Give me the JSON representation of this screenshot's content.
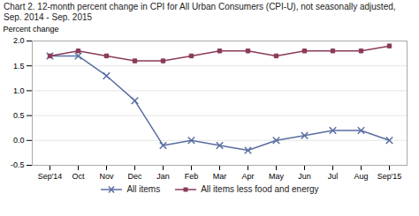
{
  "chart_data": {
    "type": "line",
    "title": "Chart 2. 12-month percent change in CPI for All Urban Consumers (CPI-U), not seasonally adjusted, Sep. 2014 - Sep. 2015",
    "y_label": "Percent change",
    "categories": [
      "Sep'14",
      "Oct",
      "Nov",
      "Dec",
      "Jan",
      "Feb",
      "Mar",
      "Apr",
      "May",
      "Jun",
      "Jul",
      "Aug",
      "Sep'15"
    ],
    "series": [
      {
        "name": "All items",
        "color": "#5a6ea1",
        "marker": "x",
        "values": [
          1.7,
          1.7,
          1.3,
          0.8,
          -0.1,
          0.0,
          -0.1,
          -0.2,
          0.0,
          0.1,
          0.2,
          0.2,
          0.0
        ]
      },
      {
        "name": "All items less food and energy",
        "color": "#8b3a5a",
        "marker": "square",
        "values": [
          1.7,
          1.8,
          1.7,
          1.6,
          1.6,
          1.7,
          1.8,
          1.8,
          1.7,
          1.8,
          1.8,
          1.8,
          1.9
        ]
      }
    ],
    "ylim": [
      -0.5,
      2.0
    ],
    "yticks": [
      -0.5,
      {
        "value": 0.0,
        "label": "0.0"
      },
      0.5,
      {
        "value": 1.0,
        "label": "1.0"
      },
      1.5,
      {
        "value": 2.0,
        "label": "2.0"
      }
    ],
    "grid": true,
    "legend": "bottom"
  }
}
